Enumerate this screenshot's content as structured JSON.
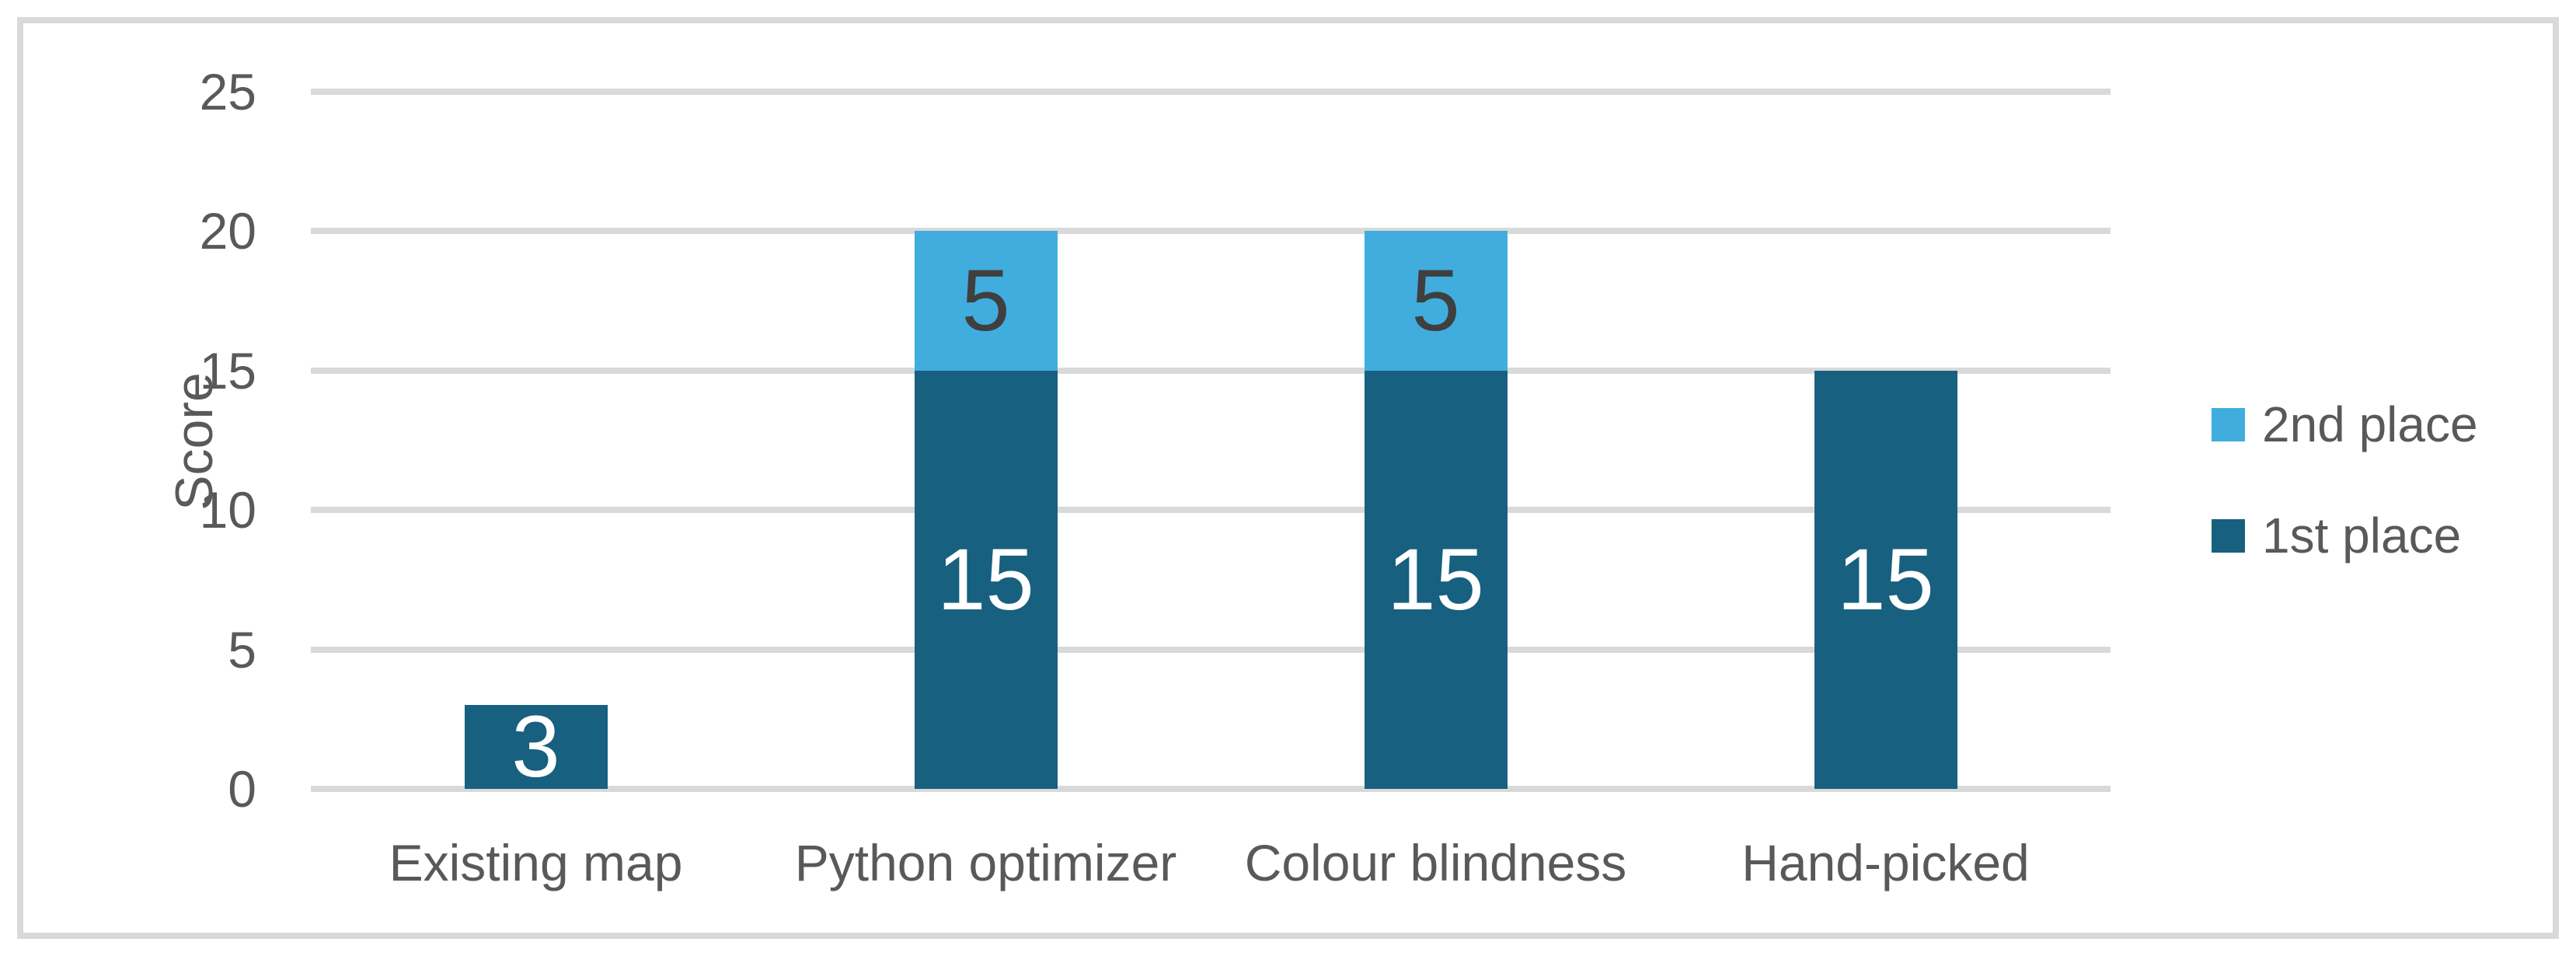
{
  "chart_data": {
    "type": "bar",
    "stacked": true,
    "title": "",
    "xlabel": "",
    "ylabel": "Score",
    "categories": [
      "Existing map",
      "Python optimizer",
      "Colour blindness",
      "Hand-picked"
    ],
    "series": [
      {
        "name": "1st place",
        "color": "#17607F",
        "label_color": "#FFFFFF",
        "values": [
          3,
          15,
          15,
          15
        ]
      },
      {
        "name": "2nd place",
        "color": "#41ADDF",
        "label_color": "#3F3F3F",
        "values": [
          0,
          5,
          5,
          0
        ]
      }
    ],
    "ylim": [
      0,
      25
    ],
    "yticks": [
      0,
      5,
      10,
      15,
      20,
      25
    ],
    "grid": "horizontal",
    "data_labels": true,
    "legend_position": "right",
    "legend_order": [
      "2nd place",
      "1st place"
    ]
  },
  "palette": {
    "gridline": "#D9D9D9",
    "frame_border": "#D9D9D9",
    "axis_text": "#595959",
    "background": "#FFFFFF"
  }
}
